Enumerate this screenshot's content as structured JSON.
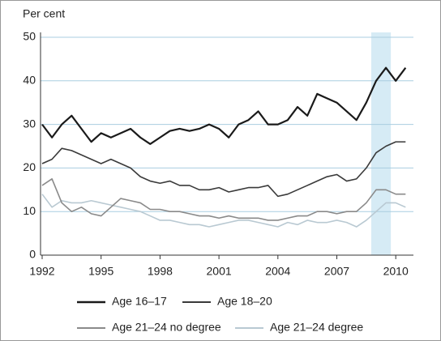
{
  "chart_data": {
    "type": "line",
    "y_label": "Per cent",
    "x": [
      1992,
      1992.5,
      1993,
      1993.5,
      1994,
      1994.5,
      1995,
      1995.5,
      1996,
      1996.5,
      1997,
      1997.5,
      1998,
      1998.5,
      1999,
      1999.5,
      2000,
      2000.5,
      2001,
      2001.5,
      2002,
      2002.5,
      2003,
      2003.5,
      2004,
      2004.5,
      2005,
      2005.5,
      2006,
      2006.5,
      2007,
      2007.5,
      2008,
      2008.5,
      2009,
      2009.5,
      2010,
      2010.5
    ],
    "series": [
      {
        "name": "Age 16–17",
        "color": "#1a1a1a",
        "width": 2.2,
        "values": [
          30,
          27,
          30,
          32,
          29,
          26,
          28,
          27,
          28,
          29,
          27,
          25.5,
          27,
          28.5,
          29,
          28.5,
          29,
          30,
          29,
          27,
          30,
          31,
          33,
          30,
          30,
          31,
          34,
          32,
          37,
          36,
          35,
          33,
          31,
          35,
          40,
          43,
          40,
          43
        ]
      },
      {
        "name": "Age 18–20",
        "color": "#3a3a3a",
        "width": 1.6,
        "values": [
          21,
          22,
          24.5,
          24,
          23,
          22,
          21,
          22,
          21,
          20,
          18,
          17,
          16.5,
          17,
          16,
          16,
          15,
          15,
          15.5,
          14.5,
          15,
          15.5,
          15.5,
          16,
          13.5,
          14,
          15,
          16,
          17,
          18,
          18.5,
          17,
          17.5,
          20,
          23.5,
          25,
          26,
          26
        ]
      },
      {
        "name": "Age 21–24 no degree",
        "color": "#8a8a8a",
        "width": 1.6,
        "values": [
          16,
          17.5,
          12,
          10,
          11,
          9.5,
          9,
          11,
          13,
          12.5,
          12,
          10.5,
          10.5,
          10,
          10,
          9.5,
          9,
          9,
          8.5,
          9,
          8.5,
          8.5,
          8.5,
          8,
          8,
          8.5,
          9,
          9,
          10,
          10,
          9.5,
          10,
          10,
          12,
          15,
          15,
          14,
          14
        ]
      },
      {
        "name": "Age 21–24 degree",
        "color": "#b9c9d2",
        "width": 1.6,
        "values": [
          14,
          11,
          12.5,
          12,
          12,
          12.5,
          12,
          11.5,
          11,
          10.5,
          10,
          9,
          8,
          8,
          7.5,
          7,
          7,
          6.5,
          7,
          7.5,
          8,
          8,
          7.5,
          7,
          6.5,
          7.5,
          7,
          8,
          7.5,
          7.5,
          8,
          7.5,
          6.5,
          8,
          10,
          12,
          12,
          11
        ]
      }
    ],
    "shade": [
      2008.75,
      2009.75
    ],
    "xlim": [
      1992,
      2010.9
    ],
    "xticks": [
      1992,
      1995,
      1998,
      2001,
      2004,
      2007,
      2010
    ],
    "ylim": [
      0,
      50
    ],
    "yticks": [
      0,
      10,
      20,
      30,
      40,
      50
    ],
    "grid": true
  }
}
